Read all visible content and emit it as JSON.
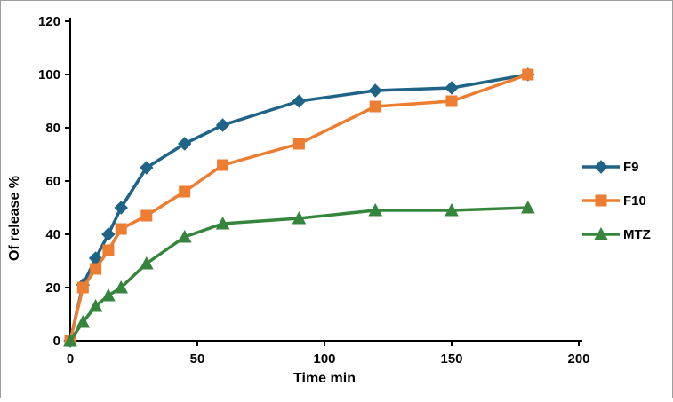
{
  "chart_data": {
    "type": "line",
    "title": "",
    "xlabel": "Time min",
    "ylabel": "Of release %",
    "xlim": [
      0,
      200
    ],
    "ylim": [
      0,
      120
    ],
    "x_ticks": [
      0,
      50,
      100,
      150,
      200
    ],
    "y_ticks": [
      0,
      20,
      40,
      60,
      80,
      100,
      120
    ],
    "grid": false,
    "legend_position": "right",
    "x": [
      0,
      5,
      10,
      15,
      20,
      30,
      45,
      60,
      90,
      120,
      150,
      180
    ],
    "series": [
      {
        "name": "F9",
        "marker": "diamond",
        "color": "#1f6387",
        "values": [
          0,
          21,
          31,
          40,
          50,
          65,
          74,
          81,
          90,
          94,
          95,
          100
        ]
      },
      {
        "name": "F10",
        "marker": "square",
        "color": "#ed7d31",
        "values": [
          0,
          20,
          27,
          34,
          42,
          47,
          56,
          66,
          74,
          88,
          90,
          100
        ]
      },
      {
        "name": "MTZ",
        "marker": "triangle",
        "color": "#35863c",
        "values": [
          0,
          7,
          13,
          17,
          20,
          29,
          39,
          44,
          46,
          49,
          49,
          50
        ]
      }
    ]
  }
}
